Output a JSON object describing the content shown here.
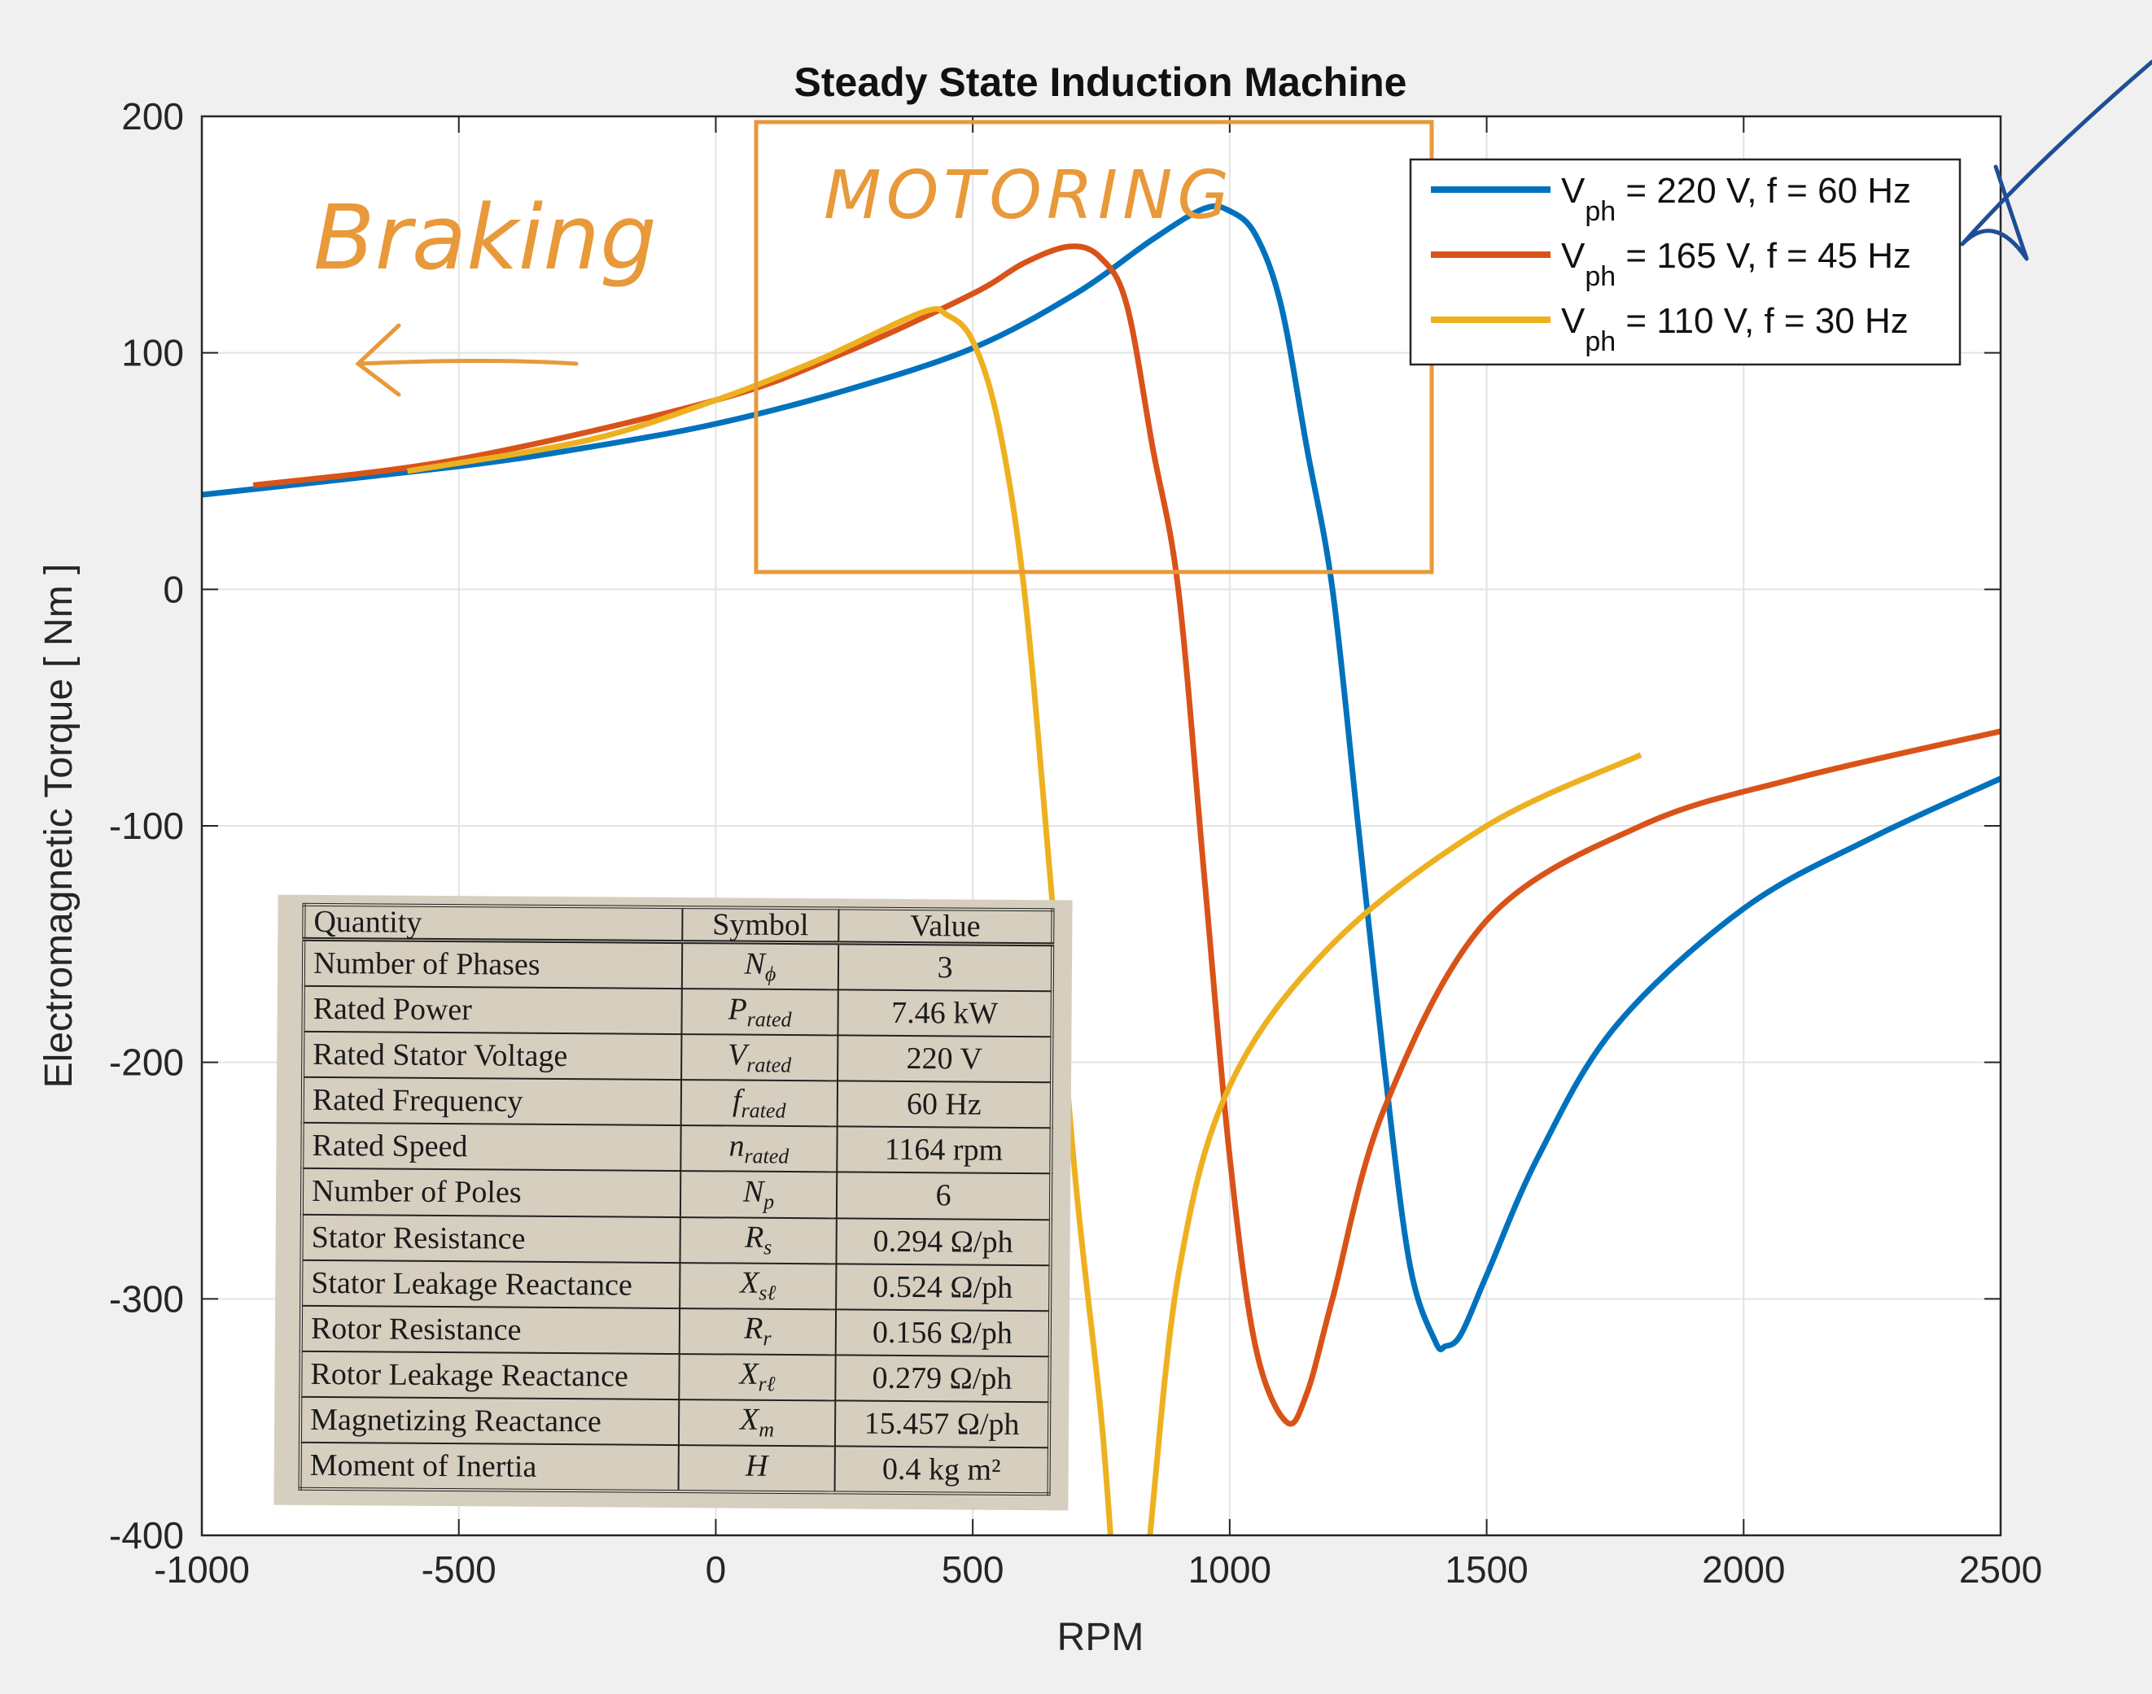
{
  "chart_data": {
    "type": "line",
    "title": "Steady State Induction Machine",
    "xlabel": "RPM",
    "ylabel": "Electromagnetic  Torque [ Nm ]",
    "xlim": [
      -1000,
      2500
    ],
    "ylim": [
      -400,
      200
    ],
    "xticks": [
      -1000,
      -500,
      0,
      500,
      1000,
      1500,
      2000,
      2500
    ],
    "yticks": [
      -400,
      -300,
      -200,
      -100,
      0,
      100,
      200
    ],
    "grid": true,
    "legend_position": "top-right",
    "series": [
      {
        "name": "Vph = 220 V, f = 60 Hz",
        "legend_sym": "V",
        "legend_sub": "ph",
        "legend_rest": " = 220 V, f = 60 Hz",
        "color": "#0072bd",
        "points": [
          [
            -1000,
            40
          ],
          [
            -500,
            52
          ],
          [
            -250,
            60
          ],
          [
            0,
            70
          ],
          [
            250,
            84
          ],
          [
            500,
            102
          ],
          [
            700,
            125
          ],
          [
            850,
            148
          ],
          [
            950,
            161
          ],
          [
            1000,
            160
          ],
          [
            1050,
            150
          ],
          [
            1100,
            120
          ],
          [
            1150,
            60
          ],
          [
            1200,
            0
          ],
          [
            1250,
            -100
          ],
          [
            1300,
            -200
          ],
          [
            1350,
            -285
          ],
          [
            1400,
            -318
          ],
          [
            1420,
            -320
          ],
          [
            1450,
            -315
          ],
          [
            1500,
            -290
          ],
          [
            1600,
            -240
          ],
          [
            1750,
            -185
          ],
          [
            2000,
            -135
          ],
          [
            2250,
            -105
          ],
          [
            2500,
            -80
          ]
        ]
      },
      {
        "name": "Vph = 165 V, f = 45 Hz",
        "legend_sym": "V",
        "legend_sub": "ph",
        "legend_rest": " = 165 V,  f = 45 Hz",
        "color": "#d95319",
        "points": [
          [
            -900,
            44
          ],
          [
            -500,
            55
          ],
          [
            0,
            80
          ],
          [
            250,
            100
          ],
          [
            500,
            125
          ],
          [
            600,
            138
          ],
          [
            690,
            145
          ],
          [
            750,
            140
          ],
          [
            800,
            120
          ],
          [
            850,
            60
          ],
          [
            900,
            0
          ],
          [
            950,
            -120
          ],
          [
            1000,
            -240
          ],
          [
            1050,
            -320
          ],
          [
            1110,
            -352
          ],
          [
            1150,
            -340
          ],
          [
            1200,
            -300
          ],
          [
            1300,
            -220
          ],
          [
            1500,
            -140
          ],
          [
            1800,
            -100
          ],
          [
            2100,
            -80
          ],
          [
            2500,
            -60
          ]
        ]
      },
      {
        "name": "Vph = 110 V, f = 30 Hz",
        "legend_sym": "V",
        "legend_sub": "ph",
        "legend_rest": " = 110 V,  f = 30 Hz",
        "color": "#edb120",
        "points": [
          [
            -600,
            50
          ],
          [
            -250,
            63
          ],
          [
            0,
            80
          ],
          [
            200,
            97
          ],
          [
            400,
            117
          ],
          [
            450,
            116
          ],
          [
            500,
            105
          ],
          [
            550,
            70
          ],
          [
            600,
            0
          ],
          [
            650,
            -120
          ],
          [
            700,
            -250
          ],
          [
            750,
            -350
          ],
          [
            780,
            -430
          ],
          [
            810,
            -460
          ],
          [
            840,
            -410
          ],
          [
            900,
            -290
          ],
          [
            1000,
            -210
          ],
          [
            1200,
            -150
          ],
          [
            1500,
            -100
          ],
          [
            1800,
            -70
          ]
        ]
      }
    ]
  },
  "annotations": {
    "braking": "Braking",
    "motoring": "MOTORING",
    "annotation_color": "#e8993a",
    "arrow_color": "#1f4e96"
  },
  "param_table": {
    "headers": [
      "Quantity",
      "Symbol",
      "Value"
    ],
    "rows": [
      [
        "Number of Phases",
        "N",
        "ϕ",
        "3"
      ],
      [
        "Rated Power",
        "P",
        "rated",
        "7.46 kW"
      ],
      [
        "Rated Stator Voltage",
        "V",
        "rated",
        "220 V"
      ],
      [
        "Rated Frequency",
        "f",
        "rated",
        "60 Hz"
      ],
      [
        "Rated Speed",
        "n",
        "rated",
        "1164 rpm"
      ],
      [
        "Number of Poles",
        "N",
        "p",
        "6"
      ],
      [
        "Stator Resistance",
        "R",
        "s",
        "0.294 Ω/ph"
      ],
      [
        "Stator Leakage Reactance",
        "X",
        "sℓ",
        "0.524 Ω/ph"
      ],
      [
        "Rotor Resistance",
        "R",
        "r",
        "0.156 Ω/ph"
      ],
      [
        "Rotor Leakage Reactance",
        "X",
        "rℓ",
        "0.279 Ω/ph"
      ],
      [
        "Magnetizing Reactance",
        "X",
        "m",
        "15.457 Ω/ph"
      ],
      [
        "Moment of Inertia",
        "H",
        "",
        "0.4 kg m²"
      ]
    ]
  }
}
